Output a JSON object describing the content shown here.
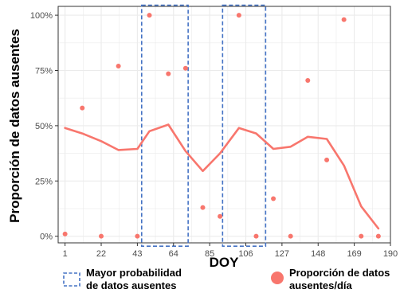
{
  "chart_data": {
    "type": "scatter",
    "title": "",
    "xlabel": "DOY",
    "ylabel": "Proporción de datos ausentes",
    "xlim": [
      -3,
      190
    ],
    "ylim": [
      -0.03,
      1.04
    ],
    "x_ticks": [
      1,
      22,
      43,
      64,
      85,
      106,
      127,
      148,
      169,
      190
    ],
    "y_ticks": [
      0,
      0.25,
      0.5,
      0.75,
      1.0
    ],
    "y_tick_labels": [
      "0%",
      "25%",
      "50%",
      "75%",
      "100%"
    ],
    "grid": true,
    "legend_position": "bottom",
    "highlight_regions": [
      {
        "name": "Mayor probabilidad de datos ausentes",
        "x_range": [
          45.5,
          72.5
        ],
        "y_range": [
          -0.045,
          1.045
        ]
      },
      {
        "name": "Mayor probabilidad de datos ausentes",
        "x_range": [
          92.5,
          117.5
        ],
        "y_range": [
          -0.045,
          1.045
        ]
      }
    ],
    "series": [
      {
        "name": "Proporción de datos ausentes/día",
        "kind": "points",
        "x": [
          1,
          11,
          22,
          32,
          43,
          50,
          61,
          71,
          81,
          91,
          102,
          112,
          122,
          132,
          142,
          153,
          163,
          173,
          183
        ],
        "y": [
          0.01,
          0.58,
          0.0,
          0.77,
          0.0,
          1.0,
          0.735,
          0.76,
          0.13,
          0.09,
          1.0,
          0.0,
          0.17,
          0.0,
          0.705,
          0.345,
          0.98,
          0.0,
          0.0
        ]
      },
      {
        "name": "",
        "kind": "line",
        "x": [
          1,
          11,
          22,
          32,
          43,
          50,
          61,
          71,
          81,
          91,
          102,
          112,
          122,
          132,
          142,
          153,
          163,
          173,
          183
        ],
        "y": [
          0.49,
          0.465,
          0.43,
          0.39,
          0.395,
          0.475,
          0.505,
          0.385,
          0.295,
          0.375,
          0.49,
          0.465,
          0.395,
          0.405,
          0.45,
          0.44,
          0.32,
          0.135,
          0.035
        ]
      }
    ],
    "legend": [
      {
        "label": "Mayor probabilidad\nde datos ausentes",
        "symbol": "dashed-box"
      },
      {
        "label": "Proporción de datos\nausentes/día",
        "symbol": "circle"
      }
    ]
  },
  "colors": {
    "points": "#f8766d",
    "line": "#f8766d",
    "box": "#4472c4",
    "grid": "#ebebeb",
    "axis_text": "#4d4d4d"
  }
}
